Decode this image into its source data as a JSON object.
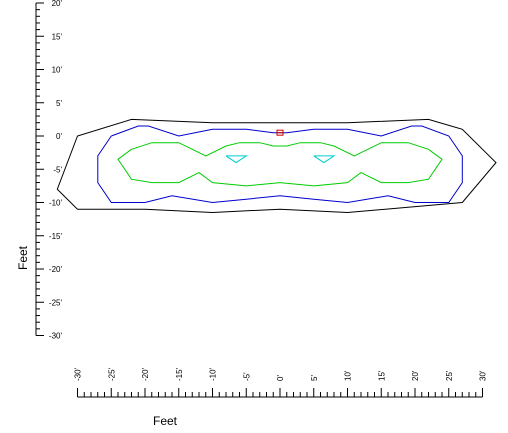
{
  "chart_data": {
    "type": "line",
    "title": "",
    "xlabel": "Feet",
    "ylabel": "Feet",
    "xlim": [
      -30,
      30
    ],
    "ylim": [
      -30,
      20
    ],
    "x_ticks": [
      "-30'",
      "-25'",
      "-20'",
      "-15'",
      "-10'",
      "-5'",
      "0'",
      "5'",
      "10'",
      "15'",
      "20'",
      "25'",
      "30'"
    ],
    "y_ticks": [
      "20'",
      "15'",
      "10'",
      "5'",
      "0'",
      "-5'",
      "-10'",
      "-15'",
      "-20'",
      "-25'",
      "-30'"
    ],
    "colors": {
      "outer": "#000000",
      "blue": "#0000cc",
      "green": "#00cc00",
      "cyan": "#00cccc",
      "marker": "#cc0000"
    },
    "series": [
      {
        "color": "#000000",
        "closed": true,
        "x": [
          -22,
          -10,
          0,
          10,
          22,
          27,
          32,
          27,
          10,
          0,
          -10,
          -20,
          -25,
          -30,
          -33,
          -30,
          -22
        ],
        "y": [
          2.5,
          2,
          2,
          2,
          2.5,
          1,
          -4,
          -10,
          -11.5,
          -11,
          -11.5,
          -11,
          -11,
          -11,
          -8,
          0,
          2.5
        ]
      },
      {
        "color": "#0000cc",
        "closed": true,
        "x": [
          -25,
          -21,
          -19.5,
          -15,
          -10,
          -5,
          -1,
          1,
          5,
          10,
          15,
          19.5,
          21,
          25,
          27,
          27,
          25,
          20,
          16,
          10,
          5,
          0,
          -5,
          -10,
          -16,
          -20,
          -25,
          -27,
          -27,
          -25
        ],
        "y": [
          0,
          1.5,
          1.5,
          0,
          1,
          1,
          0.5,
          0.5,
          1,
          1,
          0,
          1.5,
          1.5,
          0,
          -3,
          -7,
          -10,
          -10,
          -9,
          -10,
          -9.5,
          -9,
          -9.5,
          -10,
          -9,
          -10,
          -10,
          -7,
          -3,
          0
        ]
      },
      {
        "color": "#00cc00",
        "closed": true,
        "x": [
          -22,
          -19,
          -15,
          -13,
          -11,
          -8,
          -6,
          -3,
          -1,
          1,
          3,
          6,
          8,
          11,
          13,
          15,
          19,
          22,
          24,
          22,
          19,
          15,
          12,
          10,
          5,
          0,
          -5,
          -10,
          -12,
          -15,
          -19,
          -22,
          -24,
          -22
        ],
        "y": [
          -2,
          -1,
          -1,
          -2,
          -3,
          -1.5,
          -1,
          -1,
          -1.5,
          -1.5,
          -1,
          -1,
          -1.5,
          -3,
          -2,
          -1,
          -1,
          -2,
          -3.5,
          -6.5,
          -7,
          -7,
          -5.5,
          -7,
          -7.5,
          -7,
          -7.5,
          -7,
          -5.5,
          -7,
          -7,
          -6.5,
          -3.5,
          -2
        ]
      },
      {
        "color": "#00cccc",
        "closed": true,
        "x": [
          -8,
          -5,
          -6.5,
          -8
        ],
        "y": [
          -3,
          -3,
          -4,
          -3
        ]
      },
      {
        "color": "#00cccc",
        "closed": true,
        "x": [
          5,
          8,
          6.5,
          5
        ],
        "y": [
          -3,
          -3,
          -4,
          -3
        ]
      }
    ],
    "marker": {
      "x": 0,
      "y": 0.5,
      "color": "#cc0000"
    }
  }
}
